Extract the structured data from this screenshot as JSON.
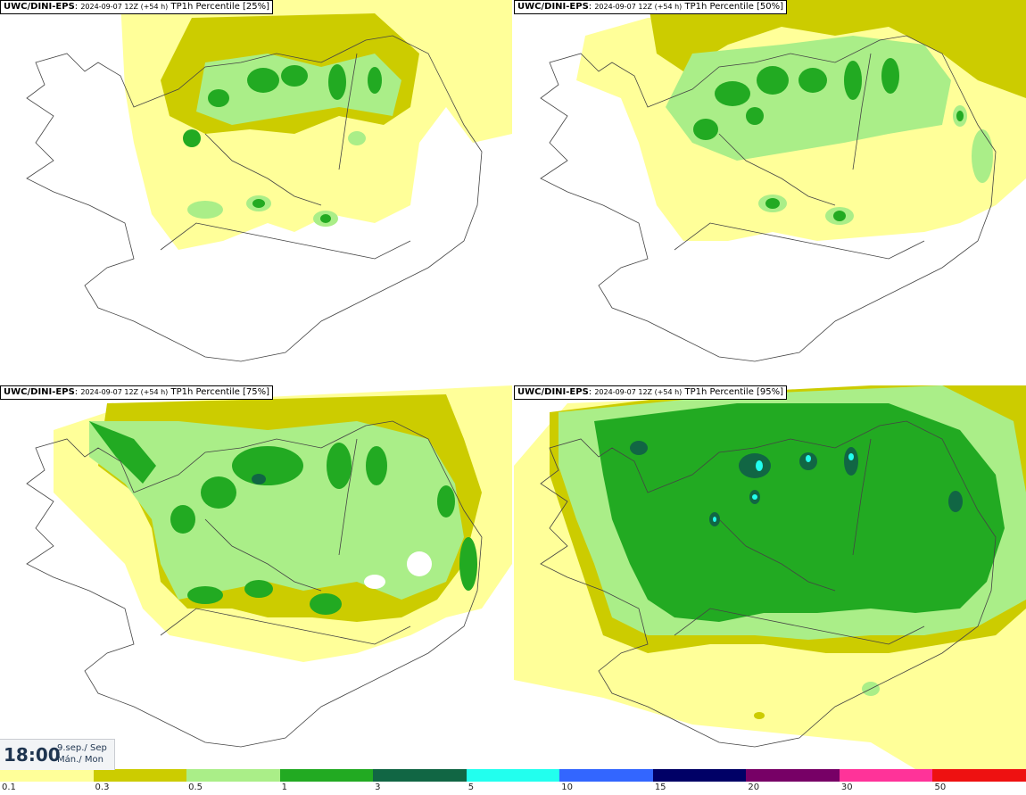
{
  "panels": [
    {
      "source": "UWC/DINI-EPS",
      "run": "2024-09-07 12Z (+54 h)",
      "field": "TP1h Percentile [25%]"
    },
    {
      "source": "UWC/DINI-EPS",
      "run": "2024-09-07 12Z (+54 h)",
      "field": "TP1h Percentile [50%]"
    },
    {
      "source": "UWC/DINI-EPS",
      "run": "2024-09-07 12Z (+54 h)",
      "field": "TP1h Percentile [75%]"
    },
    {
      "source": "UWC/DINI-EPS",
      "run": "2024-09-07 12Z (+54 h)",
      "field": "TP1h Percentile [95%]"
    }
  ],
  "timestamp": {
    "time": "18:00",
    "date_line1": "9.sep./ Sep",
    "date_line2": "Mán./ Mon"
  },
  "colorbar": {
    "labels": [
      "0.1",
      "0.3",
      "0.5",
      "1",
      "3",
      "5",
      "10",
      "15",
      "20",
      "30",
      "50"
    ],
    "colors": [
      "#ffff99",
      "#cccc00",
      "#aaee88",
      "#22aa22",
      "#116644",
      "#22ffee",
      "#3366ff",
      "#000066",
      "#770066",
      "#ff3399",
      "#ee1111"
    ]
  },
  "palette": {
    "yellow": "#ffff99",
    "olive": "#cccc00",
    "light_green": "#aaee88",
    "green": "#22aa22",
    "dark_green": "#116644",
    "cyan": "#22ffee"
  }
}
